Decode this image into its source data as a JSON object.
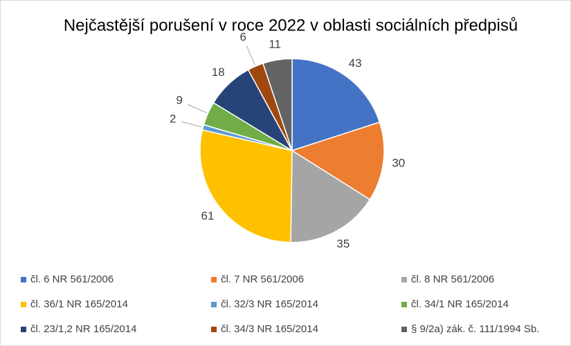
{
  "chart_data": {
    "type": "pie",
    "title": "Nejčastější porušení v roce 2022 v oblasti sociálních předpisů",
    "categories": [
      "čl. 6 NR 561/2006",
      "čl. 7 NR 561/2006",
      "čl. 8 NR 561/2006",
      "čl. 36/1 NR 165/2014",
      "čl. 32/3 NR 165/2014",
      "čl. 34/1 NR 165/2014",
      "čl. 23/1,2 NR 165/2014",
      "čl. 34/3 NR 165/2014",
      "§ 9/2a) zák. č. 111/1994 Sb."
    ],
    "values": [
      43,
      30,
      35,
      61,
      2,
      9,
      18,
      6,
      11
    ],
    "colors": [
      "#4472c4",
      "#ed7d31",
      "#a5a5a5",
      "#ffc000",
      "#5b9bd5",
      "#70ad47",
      "#264478",
      "#9e480e",
      "#636363"
    ],
    "legend": "bottom"
  }
}
